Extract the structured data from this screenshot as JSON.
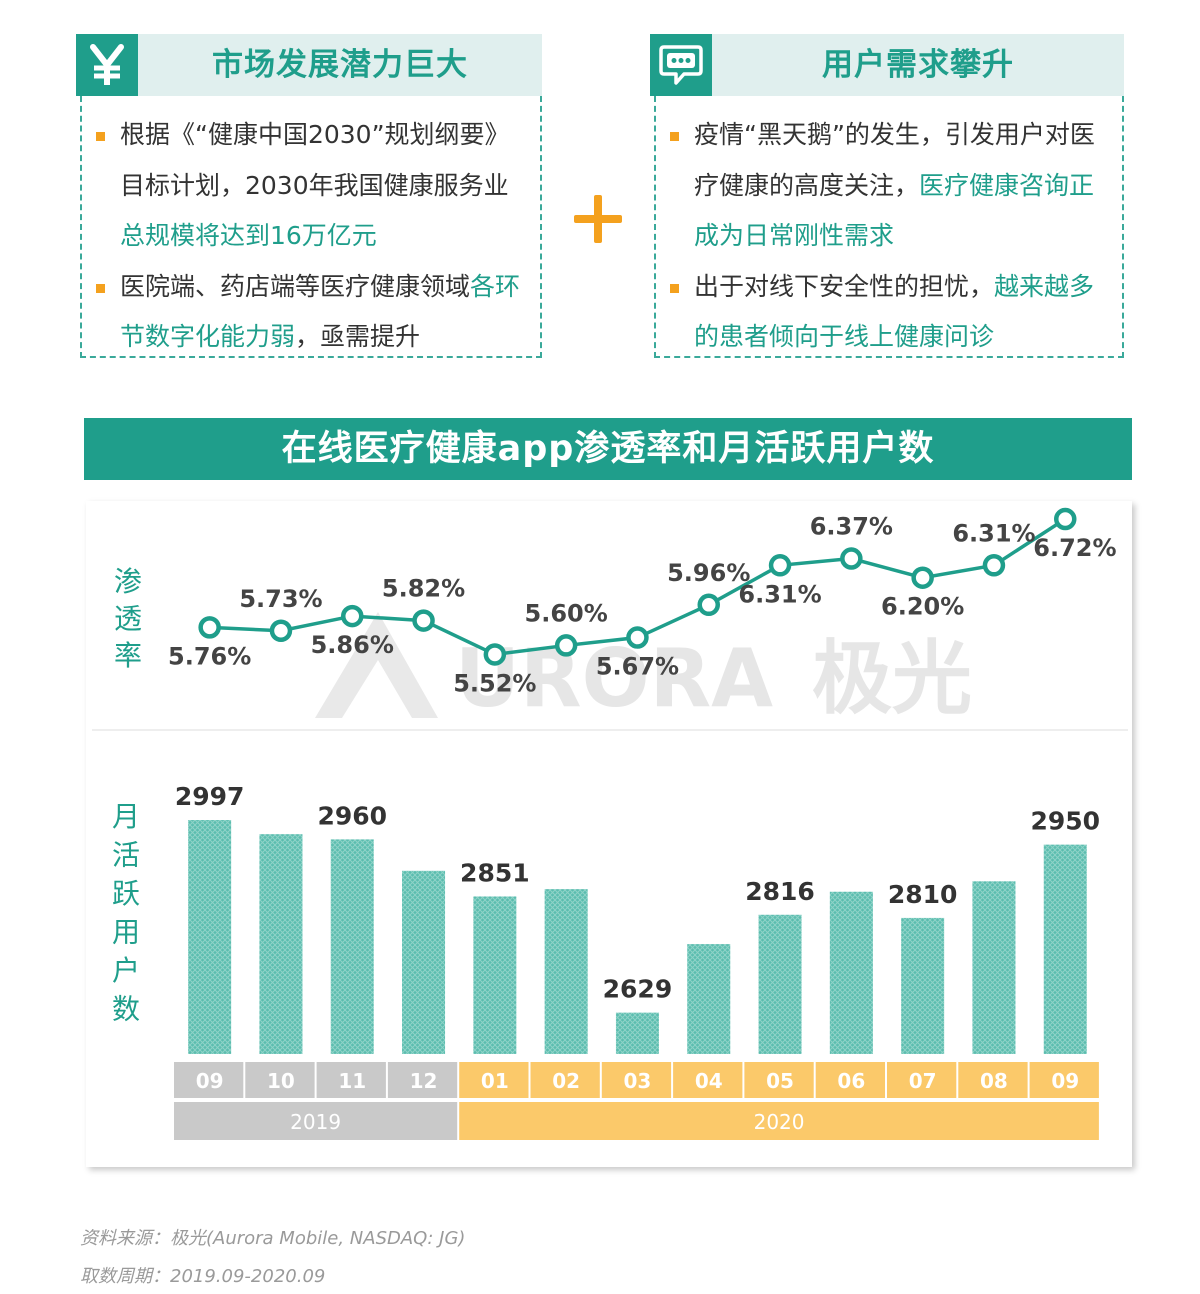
{
  "panels": {
    "market": {
      "icon": "yen-icon",
      "title": "市场发展潜力巨大",
      "b1_pre": "根据《“健康中国2030”规划纲要》目标计划，2030年我国健康服务业",
      "b1_hl": "总规模将达到16万亿元",
      "b2_pre": "医院端、药店端等医疗健康领域",
      "b2_hl": "各环节数字化能力弱",
      "b2_post": "，亟需提升"
    },
    "demand": {
      "icon": "chat-bubble-icon",
      "title": "用户需求攀升",
      "b1_pre": "疫情“黑天鹅”的发生，引发用户对医疗健康的高度关注，",
      "b1_hl": "医疗健康咨询正成为日常刚性需求",
      "b2_pre": "出于对线下安全性的担忧，",
      "b2_hl": "越来越多的患者倾向于线上健康问诊"
    }
  },
  "banner": "在线医疗健康app渗透率和月活跃用户数",
  "watermark": {
    "text": "URORA",
    "cn": "极光"
  },
  "chart_data": {
    "type": "line+bar",
    "title": "在线医疗健康app渗透率和月活跃用户数",
    "categories": [
      "09",
      "10",
      "11",
      "12",
      "01",
      "02",
      "03",
      "04",
      "05",
      "06",
      "07",
      "08",
      "09"
    ],
    "years": [
      {
        "label": "2019",
        "from": 0,
        "to": 3,
        "color": "#c9c9c9"
      },
      {
        "label": "2020",
        "from": 4,
        "to": 12,
        "color": "#fbc96a"
      }
    ],
    "series": [
      {
        "name": "渗透率",
        "kind": "line",
        "color": "#1f9e8b",
        "values": [
          5.76,
          5.73,
          5.86,
          5.82,
          5.52,
          5.6,
          5.67,
          5.96,
          6.31,
          6.37,
          6.2,
          6.31,
          6.72
        ],
        "labels": [
          "5.76%",
          "5.73%",
          "5.86%",
          "5.82%",
          "5.52%",
          "5.60%",
          "5.67%",
          "5.96%",
          "6.31%",
          "6.37%",
          "6.20%",
          "6.31%",
          "6.72%"
        ],
        "label_pos": [
          "below",
          "above",
          "below",
          "above",
          "below",
          "above",
          "below",
          "above",
          "below",
          "above",
          "below",
          "above",
          "below"
        ]
      },
      {
        "name": "月活跃用户数",
        "kind": "bar",
        "color": "#5bbdaf",
        "values": [
          2997,
          2970,
          2960,
          2900,
          2851,
          2865,
          2629,
          2760,
          2816,
          2860,
          2810,
          2880,
          2950
        ],
        "labels": [
          "2997",
          "",
          "2960",
          "",
          "2851",
          "",
          "2629",
          "",
          "2816",
          "",
          "2810",
          "",
          "2950"
        ]
      }
    ],
    "section_labels": {
      "rate": "渗\n透\n率",
      "mau": "月\n活\n跃\n用\n户\n数"
    },
    "rate_range": [
      5.4,
      6.8
    ],
    "bar_range": [
      2550,
      3020
    ]
  },
  "footer": {
    "source": "资料来源：极光(Aurora Mobile, NASDAQ: JG)",
    "period": "取数周期：2019.09-2020.09"
  }
}
